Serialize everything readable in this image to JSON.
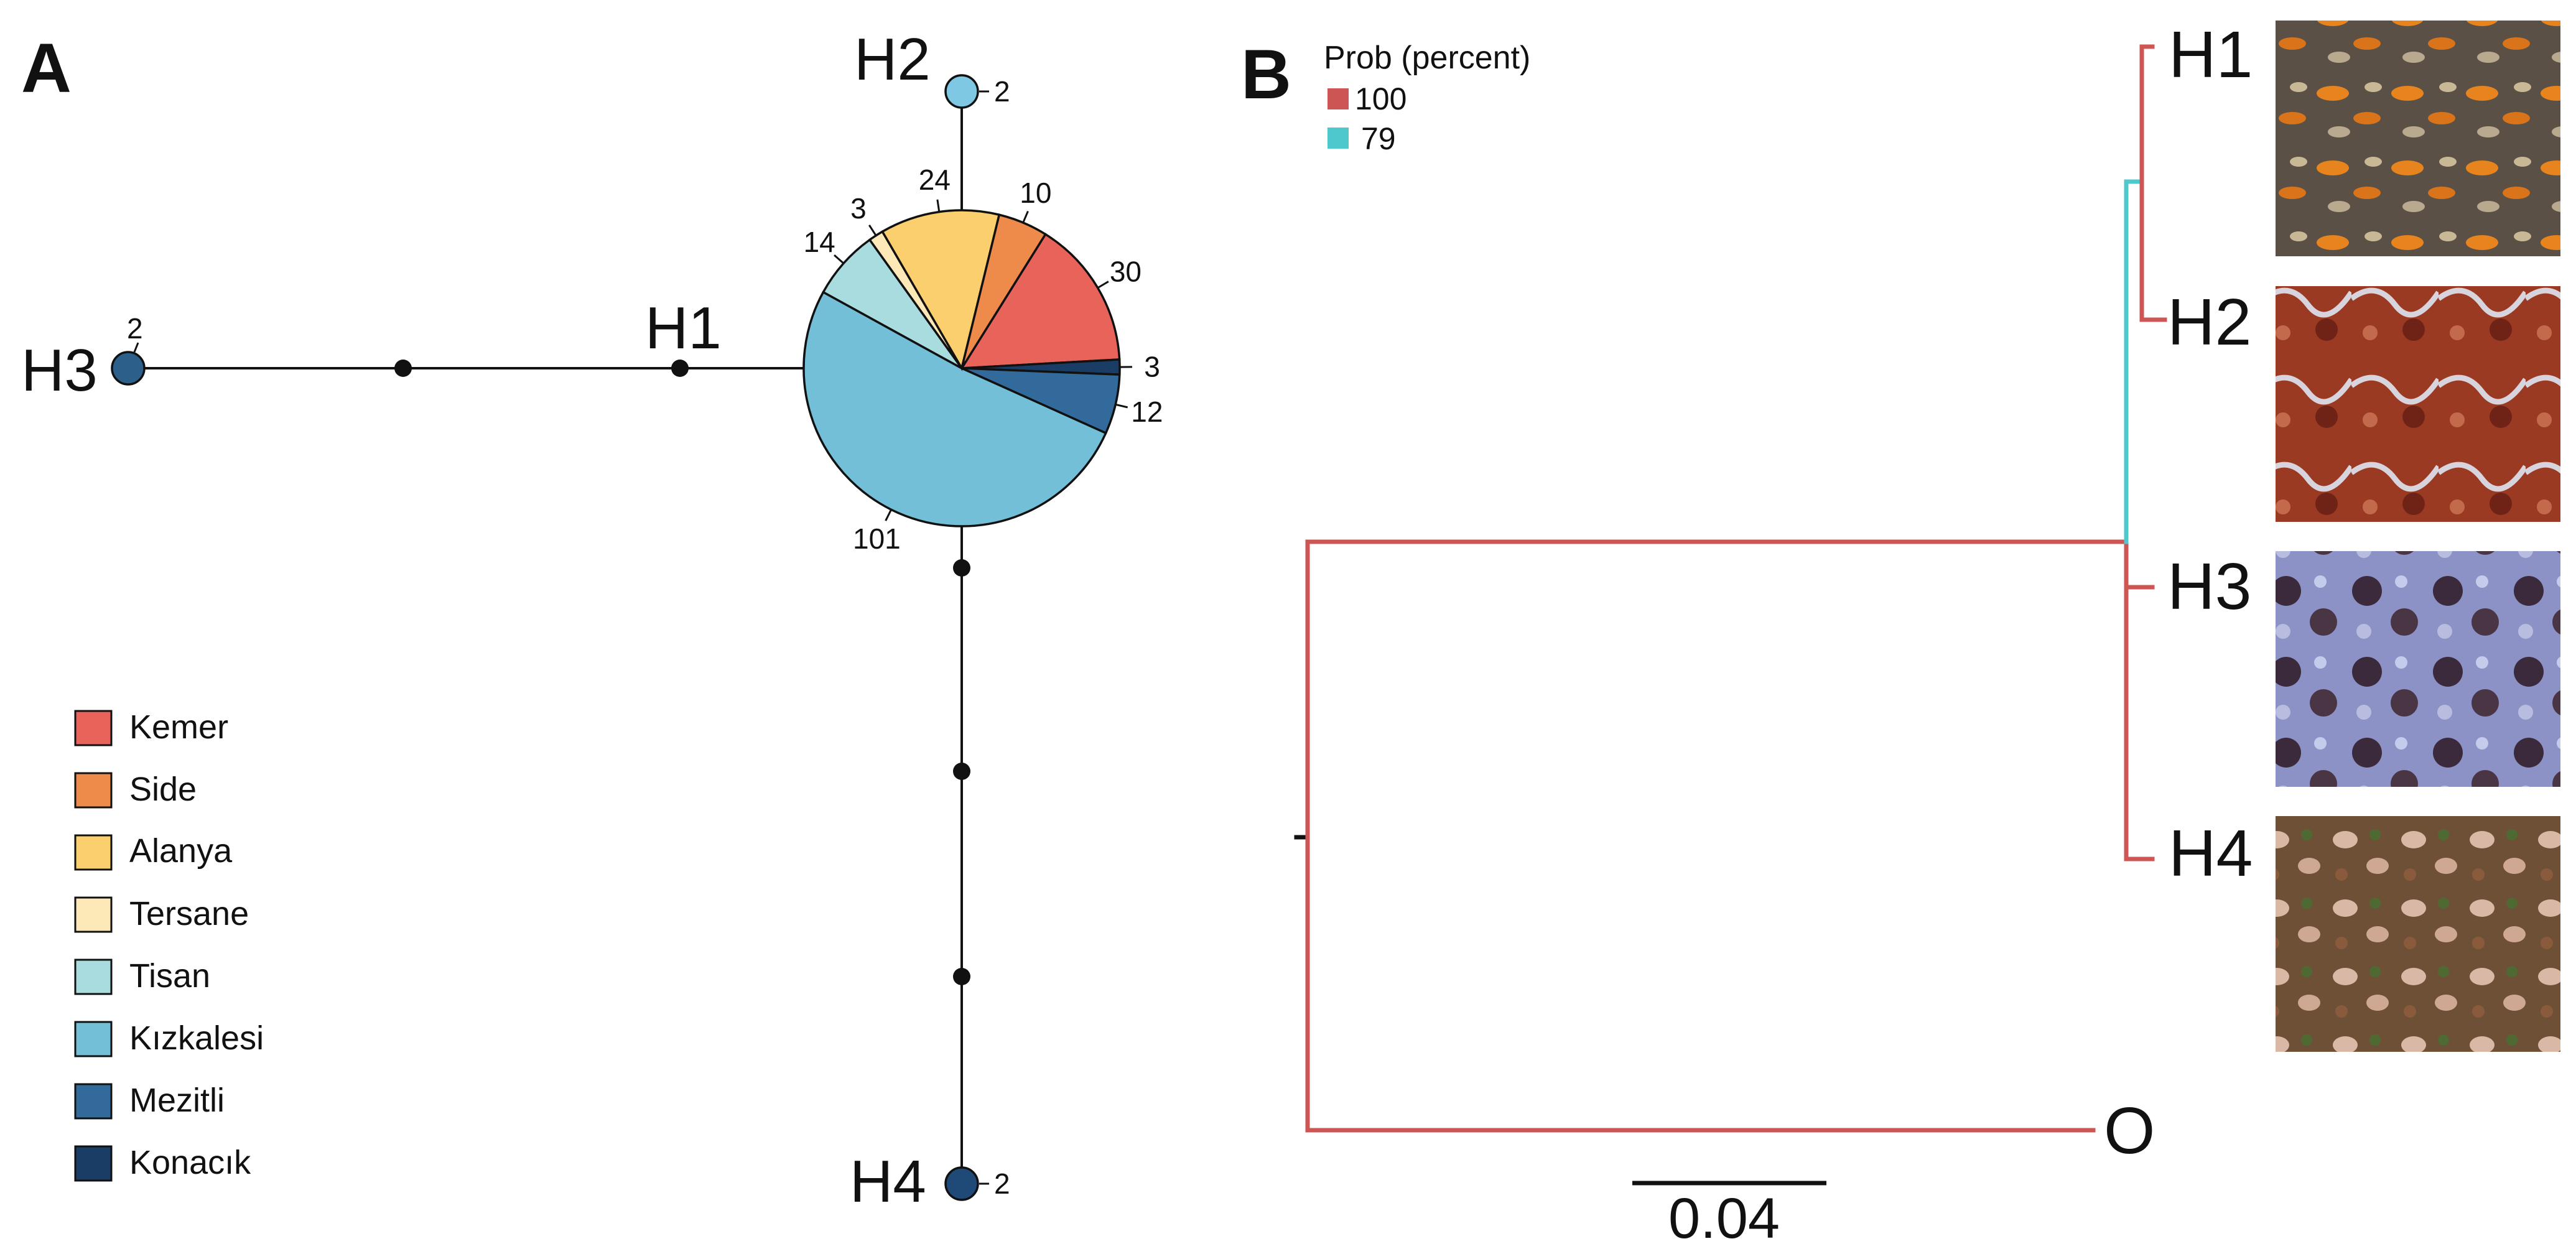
{
  "panel_a": {
    "letter": "A",
    "haplotypes": [
      {
        "id": "H1",
        "label": "H1"
      },
      {
        "id": "H2",
        "label": "H2",
        "count": "2",
        "color": "#7ec8e3"
      },
      {
        "id": "H3",
        "label": "H3",
        "count": "2",
        "color": "#2c5f8a"
      },
      {
        "id": "H4",
        "label": "H4",
        "count": "2",
        "color": "#1f4a78"
      }
    ],
    "h1_pie": [
      {
        "population": "Kemer",
        "count": 30,
        "label": "30"
      },
      {
        "population": "Konacık",
        "count": 3,
        "label": "3"
      },
      {
        "population": "Mezitli",
        "count": 12,
        "label": "12"
      },
      {
        "population": "Kızkalesi",
        "count": 101,
        "label": "101"
      },
      {
        "population": "Tisan",
        "count": 14,
        "label": "14"
      },
      {
        "population": "Tersane",
        "count": 3,
        "label": "3"
      },
      {
        "population": "Alanya",
        "count": 24,
        "label": "24"
      },
      {
        "population": "Side",
        "count": 10,
        "label": "10"
      }
    ],
    "legend": [
      {
        "label": "Kemer",
        "color": "#e8645a"
      },
      {
        "label": "Side",
        "color": "#ef8b4a"
      },
      {
        "label": "Alanya",
        "color": "#fbcf6e"
      },
      {
        "label": "Tersane",
        "color": "#fde8b8"
      },
      {
        "label": "Tisan",
        "color": "#a9dcdf"
      },
      {
        "label": "Kızkalesi",
        "color": "#73bfd8"
      },
      {
        "label": "Mezitli",
        "color": "#336a9c"
      },
      {
        "label": "Konacık",
        "color": "#1a3d66"
      }
    ]
  },
  "panel_b": {
    "letter": "B",
    "prob_title": "Prob (percent)",
    "prob_legend": [
      {
        "label": "100",
        "color": "#cd5654"
      },
      {
        "label": "79",
        "color": "#4ec8cc"
      }
    ],
    "tips": [
      {
        "label": "H1"
      },
      {
        "label": "H2"
      },
      {
        "label": "H3"
      },
      {
        "label": "H4"
      },
      {
        "label": "O"
      }
    ],
    "scale_label": "0.04",
    "photo_names": [
      "H1 colony photo",
      "H2 colony photo",
      "H3 colony photo",
      "H4 colony photo"
    ]
  }
}
